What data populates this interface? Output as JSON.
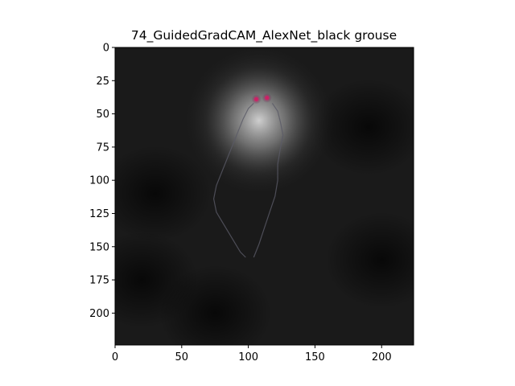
{
  "chart_data": {
    "type": "heatmap",
    "title": "74_GuidedGradCAM_AlexNet_black grouse",
    "xlabel": "",
    "ylabel": "",
    "xlim": [
      0,
      224
    ],
    "ylim": [
      224,
      0
    ],
    "x_ticks": [
      0,
      50,
      100,
      150,
      200
    ],
    "y_ticks": [
      0,
      25,
      50,
      75,
      100,
      125,
      150,
      175,
      200
    ],
    "grid": false,
    "image_size": [
      224,
      224
    ],
    "image_description_values": {
      "background_color": "#1a1a1a",
      "hotspot_center": [
        108,
        55
      ],
      "hotspot_color": "#bfbfbf",
      "highlight_points": [
        {
          "x": 106,
          "y": 39,
          "color": "#cc2266"
        },
        {
          "x": 114,
          "y": 38,
          "color": "#cc2266"
        }
      ]
    }
  }
}
